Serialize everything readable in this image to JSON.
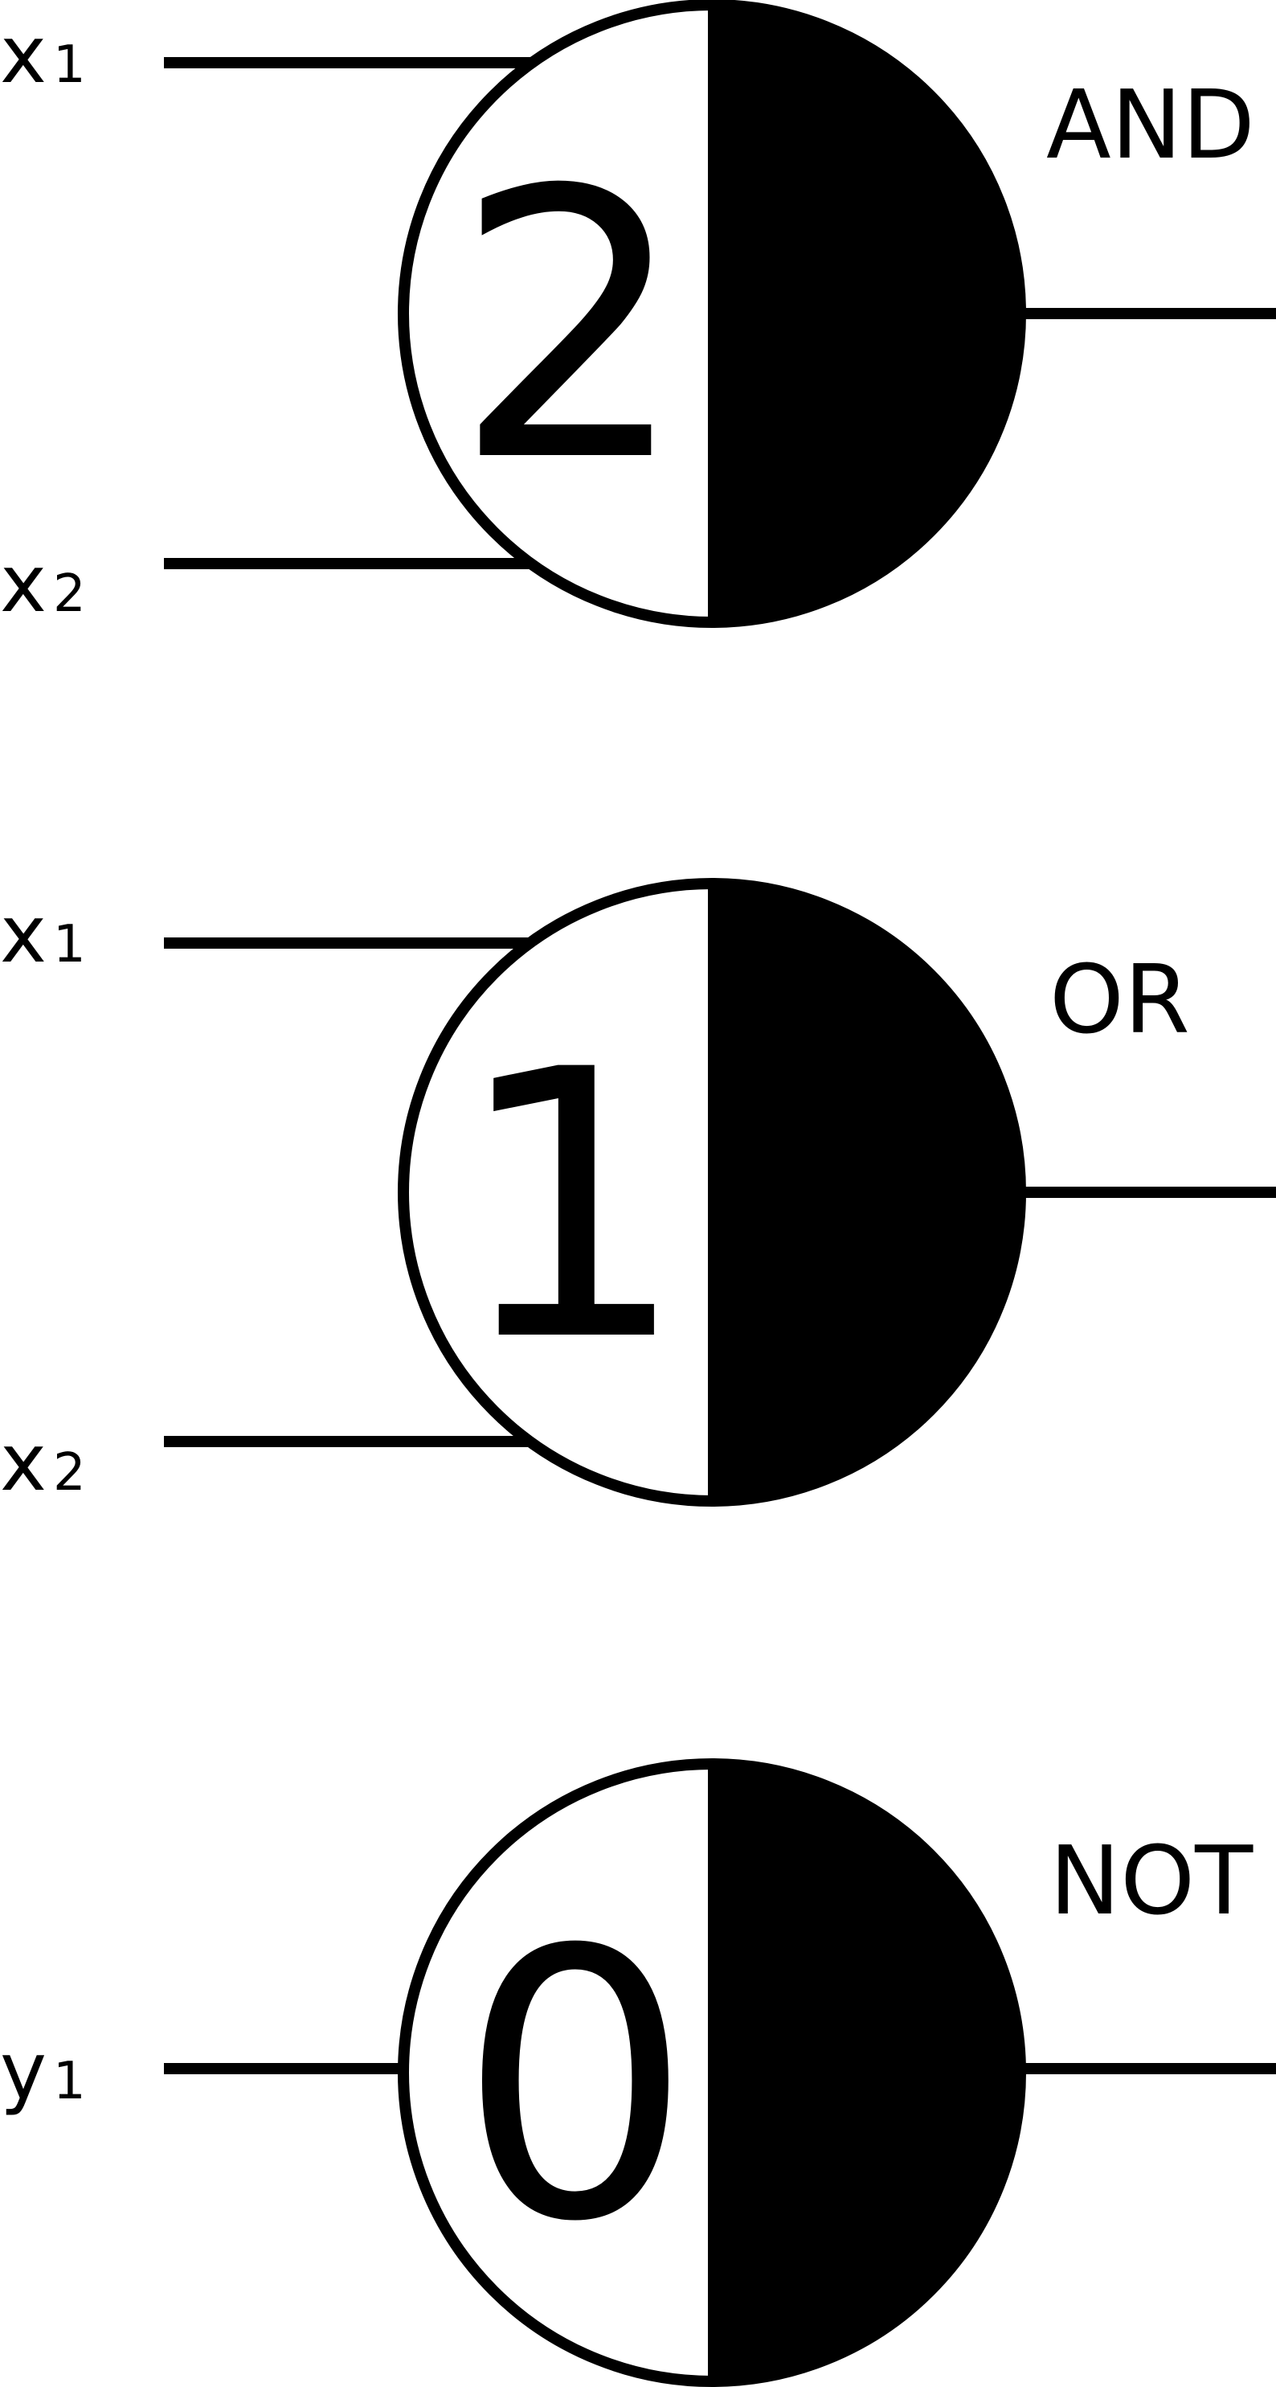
{
  "colors": {
    "line": "#000000",
    "fill_dark": "#000000",
    "fill_light": "#ffffff"
  },
  "gates": [
    {
      "name": "AND",
      "threshold": "2",
      "inputs": [
        {
          "var": "x",
          "sub": "1"
        },
        {
          "var": "x",
          "sub": "2"
        }
      ]
    },
    {
      "name": "OR",
      "threshold": "1",
      "inputs": [
        {
          "var": "x",
          "sub": "1"
        },
        {
          "var": "x",
          "sub": "2"
        }
      ]
    },
    {
      "name": "NOT",
      "threshold": "0",
      "inputs": [
        {
          "var": "y",
          "sub": "1"
        }
      ]
    }
  ]
}
